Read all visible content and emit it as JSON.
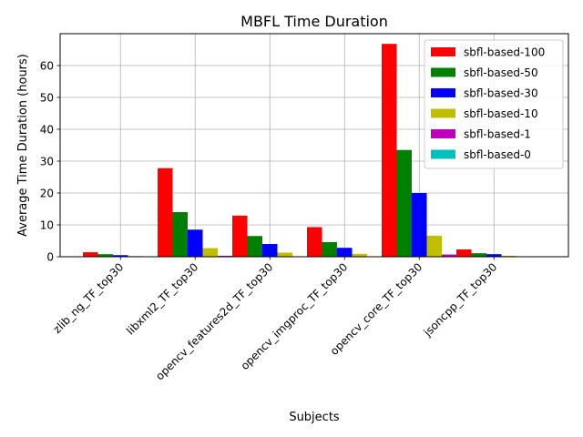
{
  "chart_data": {
    "type": "bar",
    "title": "MBFL Time Duration",
    "xlabel": "Subjects",
    "ylabel": "Average Time Duration (hours)",
    "ylim": [
      0,
      70
    ],
    "yticks": [
      0,
      10,
      20,
      30,
      40,
      50,
      60
    ],
    "grid": true,
    "legend_position": "top-right",
    "categories": [
      "zlib_ng_TF_top30",
      "libxml2_TF_top30",
      "opencv_features2d_TF_top30",
      "opencv_imgproc_TF_top30",
      "opencv_core_TF_top30",
      "jsoncpp_TF_top30"
    ],
    "series": [
      {
        "name": "sbfl-based-100",
        "color": "#ff0000",
        "values": [
          1.4,
          27.8,
          12.9,
          9.3,
          66.8,
          2.3
        ]
      },
      {
        "name": "sbfl-based-50",
        "color": "#008000",
        "values": [
          0.8,
          14.0,
          6.5,
          4.6,
          33.5,
          1.1
        ]
      },
      {
        "name": "sbfl-based-30",
        "color": "#0000ff",
        "values": [
          0.5,
          8.5,
          4.0,
          2.8,
          20.0,
          0.8
        ]
      },
      {
        "name": "sbfl-based-10",
        "color": "#bfbf00",
        "values": [
          0.2,
          2.7,
          1.3,
          0.9,
          6.6,
          0.3
        ]
      },
      {
        "name": "sbfl-based-1",
        "color": "#bf00bf",
        "values": [
          0.05,
          0.3,
          0.15,
          0.1,
          0.7,
          0.05
        ]
      },
      {
        "name": "sbfl-based-0",
        "color": "#00bfbf",
        "values": [
          0,
          0,
          0,
          0,
          0,
          0
        ]
      }
    ]
  }
}
